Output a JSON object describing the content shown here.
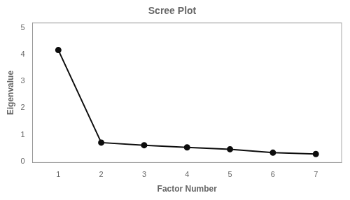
{
  "chart_data": {
    "type": "line",
    "title": "Scree Plot",
    "xlabel": "Factor Number",
    "ylabel": "Eigenvalue",
    "x": [
      1,
      2,
      3,
      4,
      5,
      6,
      7
    ],
    "values": [
      4.18,
      0.7,
      0.6,
      0.52,
      0.45,
      0.32,
      0.27
    ],
    "xlim": [
      0.4,
      7.6
    ],
    "ylim": [
      -0.05,
      5.2
    ],
    "xticks": [
      1,
      2,
      3,
      4,
      5,
      6,
      7
    ],
    "yticks": [
      0,
      1,
      2,
      3,
      4,
      5
    ],
    "color": "#0d0d0d",
    "marker": "circle",
    "grid": false
  }
}
